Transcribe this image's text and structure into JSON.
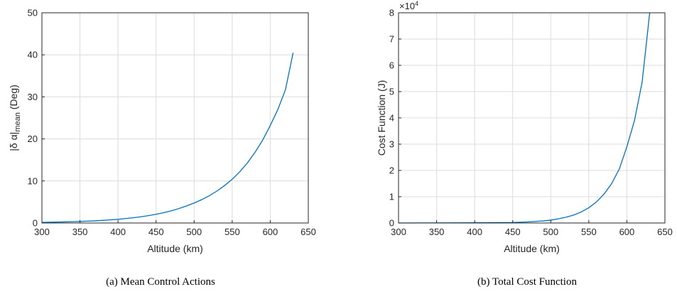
{
  "chart_data": [
    {
      "type": "line",
      "xlabel": "Altitude (km)",
      "ylabel": "|δ α|",
      "ylabel_sub": "mean",
      "ylabel_suffix": " (Deg)",
      "xlim": [
        300,
        650
      ],
      "ylim": [
        0,
        50
      ],
      "xticks": [
        300,
        350,
        400,
        450,
        500,
        550,
        600,
        650
      ],
      "yticks": [
        0,
        10,
        20,
        30,
        40,
        50
      ],
      "grid": true,
      "color": "#0072BD",
      "caption": "(a) Mean Control Actions",
      "series": [
        {
          "x": [
            300,
            310,
            320,
            330,
            340,
            350,
            360,
            370,
            380,
            390,
            400,
            410,
            420,
            430,
            440,
            450,
            460,
            470,
            480,
            490,
            500,
            510,
            520,
            530,
            540,
            550,
            560,
            570,
            580,
            590,
            600,
            610,
            620,
            630
          ],
          "y": [
            0.15,
            0.18,
            0.22,
            0.26,
            0.31,
            0.37,
            0.44,
            0.52,
            0.62,
            0.74,
            0.88,
            1.05,
            1.25,
            1.48,
            1.75,
            2.07,
            2.45,
            2.9,
            3.43,
            4.05,
            4.75,
            5.55,
            6.5,
            7.6,
            8.9,
            10.4,
            12.2,
            14.3,
            16.8,
            19.7,
            23.2,
            27.0,
            31.7,
            40.5
          ]
        }
      ]
    },
    {
      "type": "line",
      "xlabel": "Altitude (km)",
      "ylabel": "Cost Function (J)",
      "xlim": [
        300,
        650
      ],
      "ylim": [
        0,
        8
      ],
      "xticks": [
        300,
        350,
        400,
        450,
        500,
        550,
        600,
        650
      ],
      "yticks": [
        0,
        1,
        2,
        3,
        4,
        5,
        6,
        7,
        8
      ],
      "multiplier_base": "×10",
      "multiplier_exp": "4",
      "grid": true,
      "color": "#0072BD",
      "caption": "(b) Total Cost Function",
      "series": [
        {
          "x": [
            300,
            400,
            450,
            460,
            470,
            480,
            490,
            500,
            510,
            520,
            530,
            540,
            550,
            560,
            570,
            580,
            590,
            600,
            610,
            620,
            630
          ],
          "y": [
            0,
            0.01,
            0.02,
            0.03,
            0.04,
            0.06,
            0.08,
            0.11,
            0.16,
            0.22,
            0.3,
            0.42,
            0.58,
            0.8,
            1.1,
            1.5,
            2.05,
            2.9,
            3.9,
            5.35,
            8.0
          ]
        }
      ]
    }
  ]
}
